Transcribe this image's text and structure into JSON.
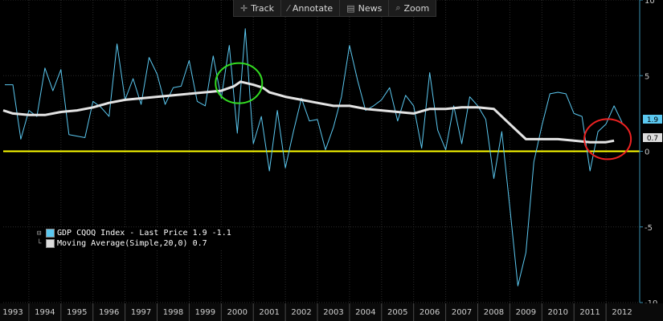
{
  "toolbar": [
    {
      "icon": "plus-icon",
      "glyph": "✛",
      "label": "Track"
    },
    {
      "icon": "annotate-icon",
      "glyph": "⁄",
      "label": "Annotate"
    },
    {
      "icon": "news-icon",
      "glyph": "▤",
      "label": "News"
    },
    {
      "icon": "zoom-icon",
      "glyph": "⌕",
      "label": "Zoom"
    }
  ],
  "legend": [
    {
      "label": "GDP CQOQ Index - Last Price 1.9  -1.1",
      "color": "#5bc8f0"
    },
    {
      "label": "Moving Average(Simple,20,0) 0.7",
      "color": "#dcdcdc"
    }
  ],
  "badges": {
    "last": "1.9",
    "ma": "0.7"
  },
  "chart_data": {
    "type": "line",
    "xlim": [
      1992.7,
      2012.55
    ],
    "ylim": [
      -10,
      10
    ],
    "x_ticks": [
      1993,
      1994,
      1995,
      1996,
      1997,
      1998,
      1999,
      2000,
      2001,
      2002,
      2003,
      2004,
      2005,
      2006,
      2007,
      2008,
      2009,
      2010,
      2011,
      2012
    ],
    "y_ticks": [
      10,
      5,
      0,
      -5,
      -10
    ],
    "grid": true,
    "reference_line": {
      "y": 0,
      "color": "#ffff00"
    },
    "series": [
      {
        "name": "GDP CQOQ Index - Last Price",
        "color": "#5bc8f0",
        "x": [
          1992.75,
          1993.0,
          1993.25,
          1993.5,
          1993.75,
          1994.0,
          1994.25,
          1994.5,
          1994.75,
          1995.0,
          1995.25,
          1995.5,
          1995.75,
          1996.0,
          1996.25,
          1996.5,
          1996.75,
          1997.0,
          1997.25,
          1997.5,
          1997.75,
          1998.0,
          1998.25,
          1998.5,
          1998.75,
          1999.0,
          1999.25,
          1999.5,
          1999.75,
          2000.0,
          2000.25,
          2000.5,
          2000.75,
          2001.0,
          2001.25,
          2001.5,
          2001.75,
          2002.0,
          2002.25,
          2002.5,
          2002.75,
          2003.0,
          2003.25,
          2003.5,
          2003.75,
          2004.0,
          2004.25,
          2004.5,
          2004.75,
          2005.0,
          2005.25,
          2005.5,
          2005.75,
          2006.0,
          2006.25,
          2006.5,
          2006.75,
          2007.0,
          2007.25,
          2007.5,
          2007.75,
          2008.0,
          2008.25,
          2008.5,
          2008.75,
          2009.0,
          2009.25,
          2009.5,
          2009.75,
          2010.0,
          2010.25,
          2010.5,
          2010.75,
          2011.0,
          2011.25,
          2011.5,
          2011.75,
          2012.0
        ],
        "y": [
          4.4,
          4.4,
          0.8,
          2.7,
          2.3,
          5.5,
          4.0,
          5.4,
          1.1,
          1.0,
          0.9,
          3.3,
          2.9,
          2.3,
          7.1,
          3.4,
          4.8,
          3.1,
          6.2,
          5.1,
          3.1,
          4.2,
          4.3,
          6.0,
          3.3,
          3.0,
          6.3,
          3.5,
          7.0,
          1.2,
          8.1,
          0.5,
          2.3,
          -1.3,
          2.7,
          -1.1,
          1.3,
          3.5,
          2.0,
          2.1,
          0.1,
          1.6,
          3.6,
          7.0,
          4.7,
          2.7,
          3.0,
          3.4,
          4.2,
          2.0,
          3.7,
          3.0,
          0.2,
          5.2,
          1.4,
          0.1,
          3.0,
          0.5,
          3.6,
          3.0,
          2.1,
          -1.8,
          1.3,
          -3.7,
          -8.9,
          -6.7,
          -0.7,
          1.7,
          3.8,
          3.9,
          3.8,
          2.5,
          2.3,
          -1.3,
          1.3,
          1.8,
          3.0,
          1.9
        ]
      },
      {
        "name": "Moving Average(Simple,20,0)",
        "color": "#e4e4e4",
        "x": [
          1992.7,
          1993.0,
          1993.5,
          1994.0,
          1994.5,
          1995.0,
          1995.5,
          1996.0,
          1996.5,
          1997.0,
          1997.5,
          1998.0,
          1998.5,
          1999.0,
          1999.5,
          1999.9,
          2000.1,
          2000.5,
          2000.8,
          2001.0,
          2001.5,
          2002.0,
          2002.5,
          2003.0,
          2003.5,
          2004.0,
          2004.5,
          2005.0,
          2005.5,
          2006.0,
          2006.5,
          2007.0,
          2007.5,
          2008.0,
          2008.4,
          2008.8,
          2009.0,
          2009.5,
          2010.0,
          2010.5,
          2011.0,
          2011.5,
          2011.75
        ],
        "y": [
          2.7,
          2.5,
          2.4,
          2.4,
          2.6,
          2.7,
          2.9,
          3.2,
          3.4,
          3.5,
          3.6,
          3.7,
          3.8,
          3.9,
          4.0,
          4.3,
          4.6,
          4.4,
          4.2,
          3.9,
          3.6,
          3.4,
          3.2,
          3.0,
          3.0,
          2.8,
          2.7,
          2.6,
          2.5,
          2.8,
          2.8,
          2.9,
          2.9,
          2.8,
          2.0,
          1.2,
          0.8,
          0.8,
          0.8,
          0.7,
          0.6,
          0.6,
          0.7
        ]
      }
    ],
    "annotations": [
      {
        "shape": "ellipse",
        "color": "#33dd22",
        "cx": 2000.05,
        "cy": 4.5
      },
      {
        "shape": "ellipse",
        "color": "#ee2222",
        "cx": 2011.55,
        "cy": 0.8
      }
    ]
  }
}
